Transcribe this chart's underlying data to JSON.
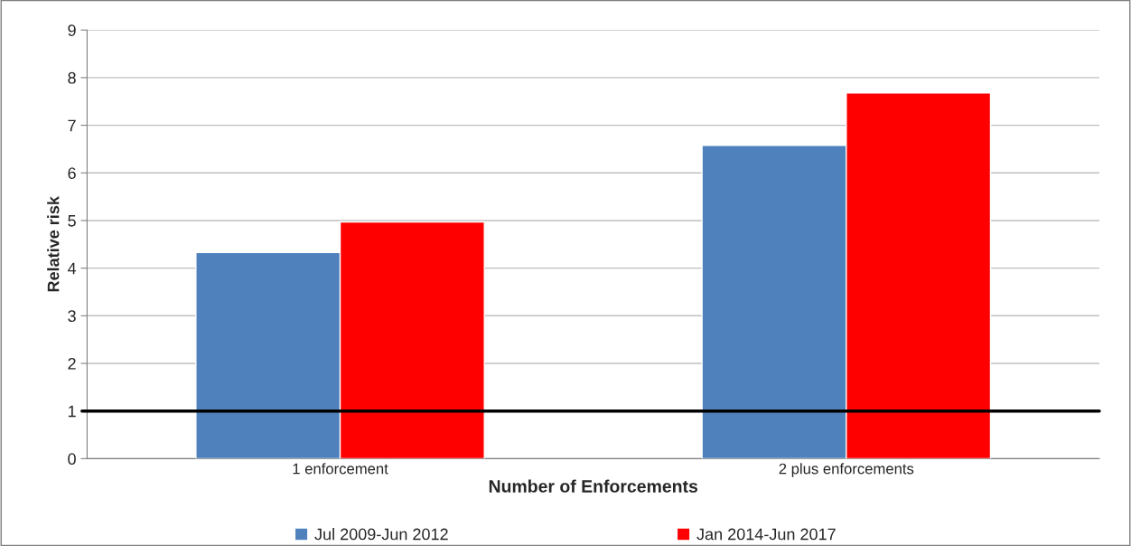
{
  "chart_data": {
    "type": "bar",
    "xlabel": "Number of Enforcements",
    "ylabel": "Relative risk",
    "categories": [
      "1 enforcement",
      "2 plus enforcements"
    ],
    "series": [
      {
        "name": "Jul 2009-Jun 2012",
        "color": "#4f81bd",
        "values": [
          4.33,
          6.58
        ]
      },
      {
        "name": "Jan 2014-Jun 2017",
        "color": "#ff0000",
        "values": [
          4.97,
          7.68
        ]
      }
    ],
    "ylim": [
      0,
      9
    ],
    "yticks": [
      0,
      1,
      2,
      3,
      4,
      5,
      6,
      7,
      8,
      9
    ],
    "grid": "y",
    "legend": "bottom",
    "ref_lines": [
      {
        "axis": "y",
        "value": 1,
        "color": "#000000",
        "line_style": "solid"
      }
    ]
  }
}
